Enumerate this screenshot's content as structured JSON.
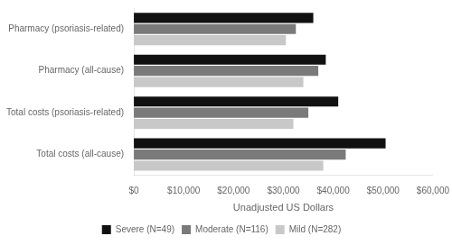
{
  "chart_data": {
    "type": "bar",
    "orientation": "horizontal",
    "categories": [
      "Pharmacy (psoriasis-related)",
      "Pharmacy (all-cause)",
      "Total costs (psoriasis-related)",
      "Total costs (all-cause)"
    ],
    "series": [
      {
        "name": "Severe (N=49)",
        "color": "#111111",
        "values": [
          36000,
          38500,
          41000,
          50500
        ]
      },
      {
        "name": "Moderate (N=116)",
        "color": "#7a7a7a",
        "values": [
          32500,
          37000,
          35000,
          42500
        ]
      },
      {
        "name": "Mild (N=282)",
        "color": "#c8c8c8",
        "values": [
          30500,
          34000,
          32000,
          38000
        ]
      }
    ],
    "xlabel": "Unadjusted US Dollars",
    "xlim": [
      0,
      60000
    ],
    "xticks": [
      {
        "value": 0,
        "label": "$0"
      },
      {
        "value": 10000,
        "label": "$10,000"
      },
      {
        "value": 20000,
        "label": "$20,000"
      },
      {
        "value": 30000,
        "label": "$30,000"
      },
      {
        "value": 40000,
        "label": "$40,000"
      },
      {
        "value": 50000,
        "label": "$50,000"
      },
      {
        "value": 60000,
        "label": "$60,000"
      }
    ],
    "grid": false,
    "legend": "bottom"
  }
}
